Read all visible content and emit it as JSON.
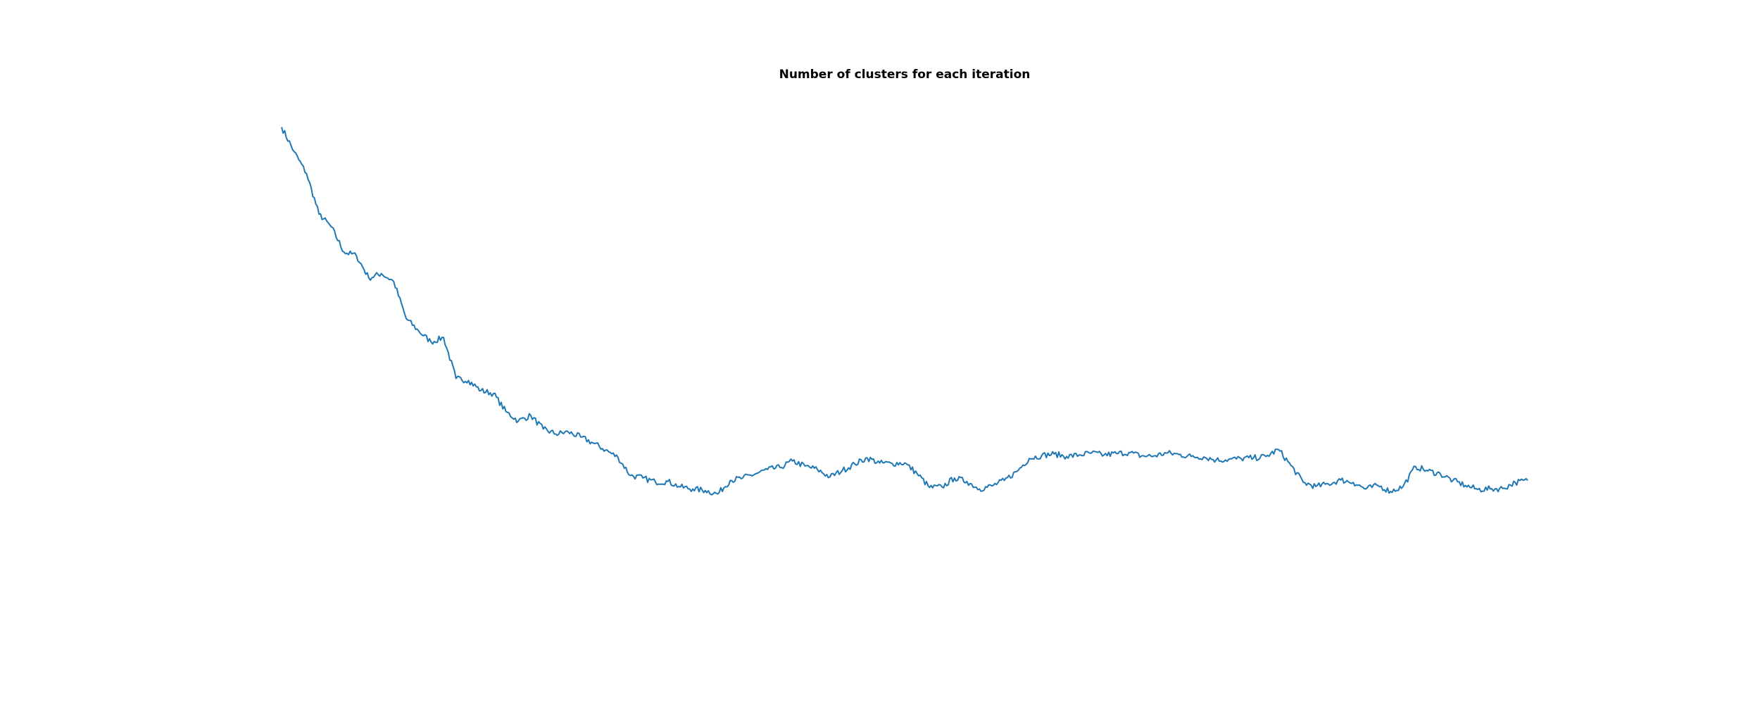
{
  "chart_data": {
    "type": "line",
    "title": "Number of clusters for each iteration",
    "xlabel": "",
    "ylabel": "",
    "axes_visible": false,
    "grid": false,
    "legend": "none",
    "xlim": [
      0,
      2000
    ],
    "ylim": [
      0,
      100
    ],
    "colors": {
      "line": "#1f77b4"
    },
    "series": [
      {
        "x": [
          0,
          20,
          40,
          60,
          80,
          100,
          120,
          140,
          160,
          180,
          200,
          220,
          240,
          260,
          280,
          300,
          320,
          340,
          360,
          380,
          400,
          420,
          440,
          460,
          480,
          500,
          520,
          540,
          560,
          580,
          600,
          620,
          640,
          660,
          680,
          700,
          720,
          740,
          760,
          780,
          800,
          820,
          840,
          860,
          880,
          900,
          920,
          940,
          960,
          980,
          1000,
          1020,
          1040,
          1060,
          1080,
          1100,
          1120,
          1140,
          1160,
          1180,
          1200,
          1220,
          1240,
          1260,
          1280,
          1300,
          1320,
          1340,
          1360,
          1380,
          1400,
          1420,
          1440,
          1460,
          1480,
          1500,
          1520,
          1540,
          1560,
          1580,
          1600,
          1620,
          1640,
          1660,
          1680,
          1700,
          1720,
          1740,
          1760,
          1780,
          1800,
          1820,
          1840,
          1860,
          1880,
          1900,
          1920,
          1940,
          1960,
          1980,
          2000
        ],
        "values": [
          95.7,
          90.8,
          86.4,
          78.3,
          75.7,
          70.7,
          70.0,
          65.5,
          66.4,
          64.8,
          57.4,
          54.9,
          52.7,
          53.6,
          45.4,
          45.0,
          43.0,
          42.4,
          38.8,
          36.9,
          38.0,
          35.3,
          34.3,
          34.7,
          33.7,
          32.5,
          31.1,
          29.6,
          26.0,
          25.5,
          24.7,
          24.8,
          23.7,
          23.3,
          23.0,
          22.3,
          25.0,
          25.5,
          26.3,
          27.2,
          27.6,
          28.9,
          27.9,
          27.2,
          25.7,
          27.0,
          28.3,
          29.5,
          28.5,
          28.4,
          28.5,
          26.4,
          23.6,
          23.7,
          25.5,
          24.8,
          23.3,
          23.9,
          25.0,
          26.8,
          29.4,
          30.0,
          30.3,
          29.8,
          30.1,
          30.5,
          30.1,
          30.4,
          30.6,
          29.9,
          29.9,
          30.5,
          30.2,
          29.8,
          29.7,
          29.1,
          29.2,
          29.4,
          29.5,
          29.8,
          31.2,
          28.0,
          24.6,
          23.8,
          24.3,
          25.1,
          24.6,
          23.3,
          24.0,
          22.8,
          23.8,
          27.8,
          26.9,
          26.3,
          25.0,
          24.0,
          23.2,
          23.3,
          23.4,
          24.6,
          25.0
        ]
      }
    ]
  }
}
